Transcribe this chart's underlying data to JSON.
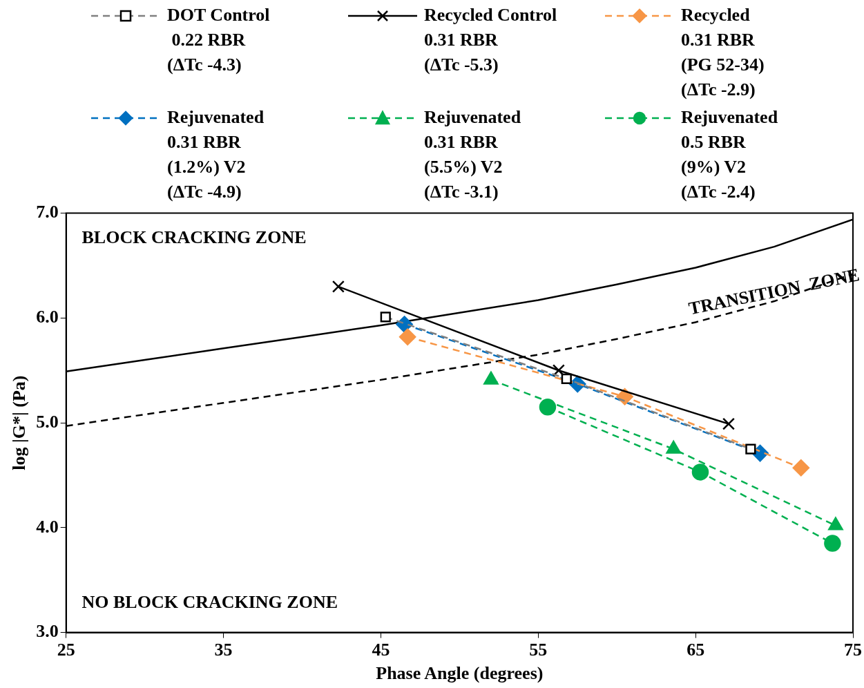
{
  "chart_data": {
    "type": "line",
    "xlabel": "Phase Angle (degrees)",
    "ylabel": "log |G*| (Pa)",
    "xlim": [
      25,
      75
    ],
    "xticks": [
      25,
      35,
      45,
      55,
      65,
      75
    ],
    "ylim": [
      3,
      7
    ],
    "yticks": [
      {
        "value": 3,
        "label": "3.0"
      },
      {
        "value": 4,
        "label": "4.0"
      },
      {
        "value": 5,
        "label": "5.0"
      },
      {
        "value": 6,
        "label": "6.0"
      },
      {
        "value": 7,
        "label": "7.0"
      }
    ],
    "grid": false,
    "legend": "top",
    "annotations": [
      "BLOCK CRACKING ZONE",
      "TRANSITION  ZONE",
      "NO BLOCK CRACKING ZONE"
    ],
    "series": [
      {
        "name": "DOT Control\n 0.22 RBR\n(ΔTc -4.3)",
        "color": "#808080",
        "marker": "square",
        "line_style": "dashed",
        "x": [
          45.3,
          56.8,
          68.5
        ],
        "values": [
          6.01,
          5.42,
          4.75
        ]
      },
      {
        "name": "Recycled Control\n0.31 RBR\n(ΔTc -5.3)",
        "color": "#000000",
        "marker": "cross",
        "line_style": "solid",
        "x": [
          42.3,
          56.3,
          67.1
        ],
        "values": [
          6.3,
          5.5,
          4.99
        ]
      },
      {
        "name": "Recycled\n0.31 RBR\n(PG 52-34)\n(ΔTc -2.9)",
        "color": "#f79646",
        "marker": "diamond",
        "line_style": "dashed",
        "x": [
          46.7,
          60.5,
          71.7
        ],
        "values": [
          5.82,
          5.25,
          4.57
        ]
      },
      {
        "name": "Rejuvenated\n0.31 RBR\n(1.2%) V2\n(ΔTc -4.9)",
        "color": "#0070c0",
        "marker": "diamond",
        "line_style": "dashed",
        "x": [
          46.5,
          57.5,
          69.1
        ],
        "values": [
          5.94,
          5.37,
          4.71
        ]
      },
      {
        "name": "Rejuvenated\n0.31 RBR\n(5.5%) V2\n(ΔTc -3.1)",
        "color": "#00b050",
        "marker": "triangle",
        "line_style": "dashed",
        "x": [
          52.0,
          63.6,
          73.9
        ],
        "values": [
          5.41,
          4.75,
          4.02
        ]
      },
      {
        "name": "Rejuvenated\n0.5 RBR\n(9%) V2\n(ΔTc -2.4)",
        "color": "#00b050",
        "marker": "circle",
        "line_style": "dashed",
        "x": [
          55.6,
          65.3,
          73.7
        ],
        "values": [
          5.15,
          4.53,
          3.85
        ]
      },
      {
        "color": "#000000",
        "marker": "none",
        "line_style": "solid",
        "x": [
          25,
          30,
          35,
          40,
          45,
          50,
          55,
          60,
          65,
          70,
          75
        ],
        "values": [
          5.49,
          5.6,
          5.71,
          5.82,
          5.93,
          6.05,
          6.17,
          6.32,
          6.48,
          6.68,
          6.94
        ]
      },
      {
        "color": "#000000",
        "marker": "none",
        "line_style": "dashed",
        "x": [
          25,
          30,
          35,
          40,
          45,
          50,
          55,
          60,
          65,
          70,
          75
        ],
        "values": [
          4.97,
          5.08,
          5.19,
          5.3,
          5.41,
          5.53,
          5.65,
          5.8,
          5.96,
          6.16,
          6.42
        ]
      }
    ]
  }
}
